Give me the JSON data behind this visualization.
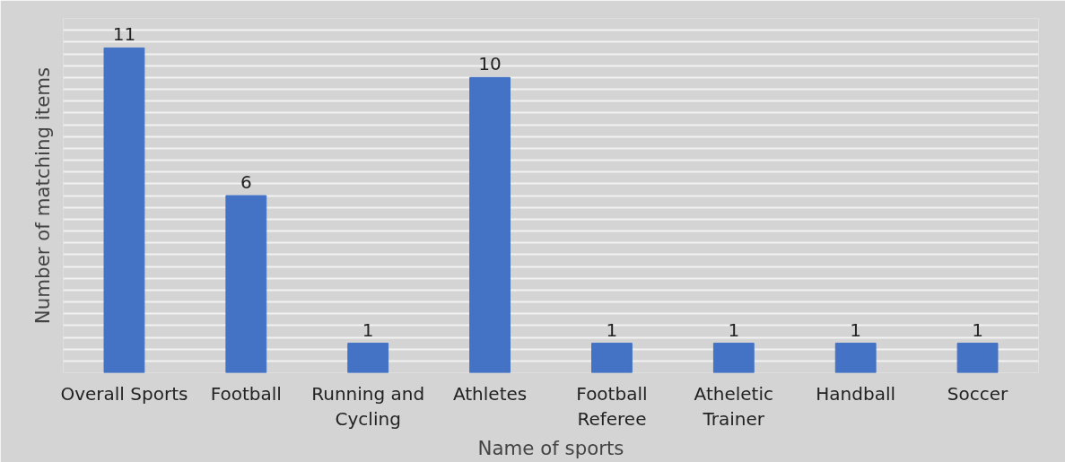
{
  "chart_data": {
    "type": "bar",
    "xlabel": "Name of sports",
    "ylabel": "Number of matching items",
    "categories": [
      "Overall Sports",
      "Football",
      "Running and Cycling",
      "Athletes",
      "Football Referee",
      "Atheletic Trainer",
      "Handball",
      "Soccer"
    ],
    "values": [
      11,
      6,
      1,
      10,
      1,
      1,
      1,
      1
    ],
    "color": "#4472c4",
    "data_labels": true,
    "grid": "y",
    "tick_labels": "x",
    "ylim": [
      0,
      12
    ],
    "yticks": [
      {
        "value": 0,
        "label": null
      },
      {
        "value": 0.4,
        "label": null
      },
      {
        "value": 0.8,
        "label": null
      },
      {
        "value": 1.2,
        "label": null
      },
      {
        "value": 1.6,
        "label": null
      },
      {
        "value": 2,
        "label": null
      },
      {
        "value": 2.4,
        "label": null
      },
      {
        "value": 2.8,
        "label": null
      },
      {
        "value": 3.2,
        "label": null
      },
      {
        "value": 3.6,
        "label": null
      },
      {
        "value": 4,
        "label": null
      },
      {
        "value": 4.4,
        "label": null
      },
      {
        "value": 4.8,
        "label": null
      },
      {
        "value": 5.2,
        "label": null
      },
      {
        "value": 5.6,
        "label": null
      },
      {
        "value": 6,
        "label": null
      },
      {
        "value": 6.4,
        "label": null
      },
      {
        "value": 6.8,
        "label": null
      },
      {
        "value": 7.2,
        "label": null
      },
      {
        "value": 7.6,
        "label": null
      },
      {
        "value": 8,
        "label": null
      },
      {
        "value": 8.4,
        "label": null
      },
      {
        "value": 8.8,
        "label": null
      },
      {
        "value": 9.2,
        "label": null
      },
      {
        "value": 9.6,
        "label": null
      },
      {
        "value": 10,
        "label": null
      },
      {
        "value": 10.4,
        "label": null
      },
      {
        "value": 10.8,
        "label": null
      },
      {
        "value": 11.2,
        "label": null
      },
      {
        "value": 11.6,
        "label": null
      },
      {
        "value": 12,
        "label": null
      }
    ]
  }
}
